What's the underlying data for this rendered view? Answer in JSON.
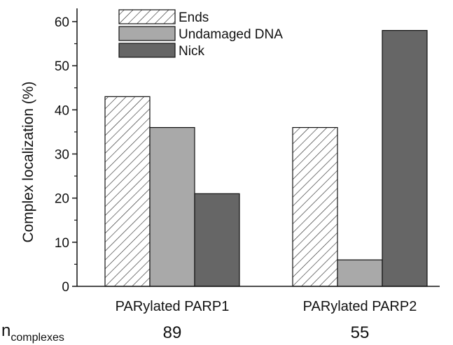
{
  "chart_data": {
    "type": "bar",
    "categories": [
      "PARylated PARP1",
      "PARylated PARP2"
    ],
    "series": [
      {
        "name": "Ends",
        "values": [
          43,
          36
        ],
        "fill": "hatch"
      },
      {
        "name": "Undamaged DNA",
        "values": [
          36,
          6
        ],
        "fill": "#a9a9a9"
      },
      {
        "name": "Nick",
        "values": [
          21,
          58
        ],
        "fill": "#666666"
      }
    ],
    "ylabel": "Complex localization (%)",
    "ylim": [
      0,
      63
    ],
    "yticks": [
      0,
      10,
      20,
      30,
      40,
      50,
      60
    ],
    "legend_position": "top-left",
    "grid": false
  },
  "counts": {
    "label_main": "n",
    "label_sub": "complexes",
    "values": [
      "89",
      "55"
    ]
  }
}
